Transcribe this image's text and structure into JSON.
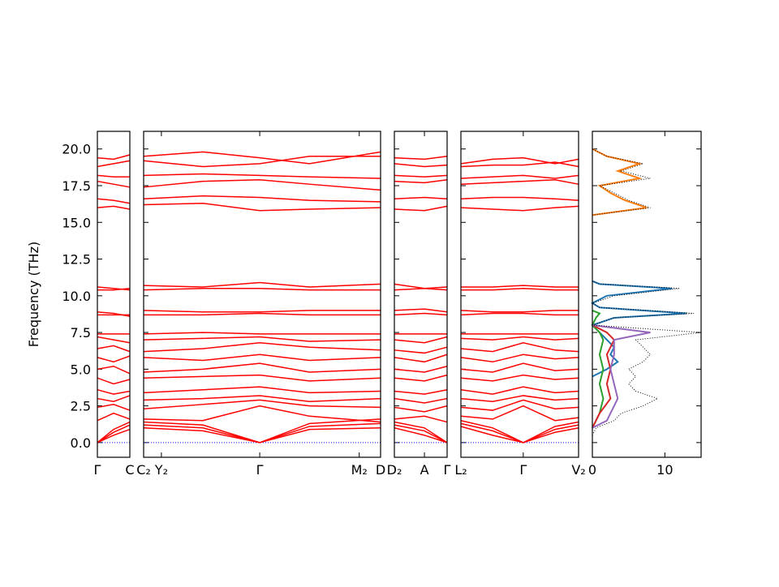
{
  "chart_data": {
    "type": "band_structure",
    "ylabel": "Frequency (THz)",
    "ylim": [
      -1,
      21.2
    ],
    "yticks": [
      {
        "value": 0,
        "label": "0.0"
      },
      {
        "value": 2.5,
        "label": "2.5"
      },
      {
        "value": 5,
        "label": "5.0"
      },
      {
        "value": 7.5,
        "label": "7.5"
      },
      {
        "value": 10,
        "label": "10.0"
      },
      {
        "value": 12.5,
        "label": "12.5"
      },
      {
        "value": 15,
        "label": "15.0"
      },
      {
        "value": 17.5,
        "label": "17.5"
      },
      {
        "value": 20,
        "label": "20.0"
      }
    ],
    "band_color": "#ff0000",
    "zero_line": {
      "value": 0,
      "color": "#0000ff"
    },
    "panels": [
      {
        "xlim": [
          0,
          1
        ],
        "xticks": [
          {
            "value": 0,
            "label": "Γ"
          },
          {
            "value": 1,
            "label": "C"
          }
        ],
        "x": [
          0,
          0.5,
          1
        ],
        "bands": [
          [
            19.4,
            19.3,
            19.6
          ],
          [
            18.8,
            19.0,
            19.2
          ],
          [
            18.2,
            18.1,
            18.1
          ],
          [
            17.8,
            17.6,
            17.4
          ],
          [
            16.6,
            16.5,
            16.3
          ],
          [
            16.0,
            16.1,
            15.9
          ],
          [
            10.6,
            10.5,
            10.4
          ],
          [
            10.4,
            10.4,
            10.5
          ],
          [
            8.9,
            8.8,
            8.6
          ],
          [
            8.7,
            8.7,
            8.7
          ],
          [
            7.4,
            7.4,
            7.4
          ],
          [
            7.2,
            7.0,
            6.8
          ],
          [
            6.4,
            6.6,
            6.2
          ],
          [
            5.8,
            5.5,
            5.9
          ],
          [
            5.0,
            5.2,
            4.7
          ],
          [
            4.4,
            4.0,
            4.3
          ],
          [
            3.6,
            3.3,
            3.5
          ],
          [
            3.0,
            2.8,
            3.2
          ],
          [
            2.4,
            2.6,
            2.2
          ],
          [
            1.5,
            2.0,
            1.6
          ],
          [
            0,
            0.9,
            1.4
          ],
          [
            0,
            0.7,
            1.2
          ],
          [
            0,
            0.5,
            0.9
          ]
        ]
      },
      {
        "xlim": [
          0,
          1
        ],
        "xticks": [
          {
            "value": 0,
            "label": "C₂"
          },
          {
            "value": 0.075,
            "label": "Y₂"
          },
          {
            "value": 0.49,
            "label": "Γ"
          },
          {
            "value": 0.91,
            "label": "M₂"
          },
          {
            "value": 1,
            "label": "D"
          }
        ],
        "x": [
          0,
          0.25,
          0.49,
          0.7,
          1
        ],
        "bands": [
          [
            19.5,
            19.8,
            19.4,
            19.0,
            19.8
          ],
          [
            19.2,
            18.8,
            19.0,
            19.5,
            19.5
          ],
          [
            18.2,
            18.3,
            18.2,
            18.1,
            18.0
          ],
          [
            17.4,
            17.8,
            17.9,
            17.6,
            17.2
          ],
          [
            16.6,
            16.8,
            16.7,
            16.5,
            16.4
          ],
          [
            16.2,
            16.3,
            15.8,
            15.9,
            16.0
          ],
          [
            10.7,
            10.6,
            10.9,
            10.6,
            10.8
          ],
          [
            10.4,
            10.5,
            10.5,
            10.4,
            10.4
          ],
          [
            9.0,
            8.9,
            8.9,
            9.0,
            9.0
          ],
          [
            8.7,
            8.7,
            8.8,
            8.7,
            8.7
          ],
          [
            7.4,
            7.5,
            7.4,
            7.4,
            7.4
          ],
          [
            7.0,
            7.1,
            7.2,
            6.9,
            7.0
          ],
          [
            6.2,
            6.4,
            6.8,
            6.5,
            6.3
          ],
          [
            5.8,
            5.6,
            6.0,
            5.6,
            5.8
          ],
          [
            4.8,
            5.0,
            5.4,
            4.8,
            5.0
          ],
          [
            4.4,
            4.5,
            4.6,
            4.2,
            4.4
          ],
          [
            3.4,
            3.6,
            3.8,
            3.4,
            3.5
          ],
          [
            2.9,
            3.0,
            3.2,
            2.8,
            3.0
          ],
          [
            2.3,
            2.6,
            2.9,
            2.5,
            2.4
          ],
          [
            1.6,
            1.5,
            2.5,
            1.8,
            1.4
          ],
          [
            1.4,
            1.2,
            0,
            1.3,
            1.6
          ],
          [
            1.2,
            1.0,
            0,
            1.1,
            1.3
          ],
          [
            1.0,
            0.8,
            0,
            0.9,
            1.0
          ]
        ]
      },
      {
        "xlim": [
          0,
          1
        ],
        "xticks": [
          {
            "value": 0,
            "label": "D₂"
          },
          {
            "value": 0.57,
            "label": "A"
          },
          {
            "value": 1,
            "label": "Γ"
          }
        ],
        "x": [
          0,
          0.57,
          1
        ],
        "bands": [
          [
            19.4,
            19.3,
            19.5
          ],
          [
            19.0,
            18.8,
            18.9
          ],
          [
            18.2,
            18.1,
            18.2
          ],
          [
            17.8,
            17.7,
            17.9
          ],
          [
            16.6,
            16.7,
            16.6
          ],
          [
            15.9,
            15.8,
            16.1
          ],
          [
            10.8,
            10.5,
            10.6
          ],
          [
            10.4,
            10.5,
            10.4
          ],
          [
            9.0,
            9.1,
            8.9
          ],
          [
            8.7,
            8.8,
            8.7
          ],
          [
            7.4,
            7.4,
            7.4
          ],
          [
            7.0,
            6.8,
            7.2
          ],
          [
            6.3,
            6.1,
            6.5
          ],
          [
            5.8,
            5.5,
            6.0
          ],
          [
            5.0,
            4.8,
            5.2
          ],
          [
            4.4,
            4.2,
            4.6
          ],
          [
            3.5,
            3.3,
            3.6
          ],
          [
            3.0,
            2.7,
            3.0
          ],
          [
            2.4,
            2.1,
            2.5
          ],
          [
            1.6,
            1.8,
            1.4
          ],
          [
            1.4,
            1.0,
            0
          ],
          [
            1.2,
            0.8,
            0
          ],
          [
            1.0,
            0.5,
            0
          ]
        ]
      },
      {
        "xlim": [
          0,
          1
        ],
        "xticks": [
          {
            "value": 0,
            "label": "L₂"
          },
          {
            "value": 0.53,
            "label": "Γ"
          },
          {
            "value": 1,
            "label": "V₂"
          }
        ],
        "x": [
          0,
          0.27,
          0.53,
          0.8,
          1
        ],
        "bands": [
          [
            19.0,
            19.3,
            19.4,
            19.0,
            19.3
          ],
          [
            18.8,
            18.9,
            18.9,
            19.1,
            18.8
          ],
          [
            18.0,
            18.1,
            18.2,
            18.0,
            18.2
          ],
          [
            17.6,
            17.7,
            17.8,
            17.9,
            17.6
          ],
          [
            16.6,
            16.7,
            16.7,
            16.6,
            16.5
          ],
          [
            16.0,
            15.9,
            15.8,
            16.0,
            16.1
          ],
          [
            10.6,
            10.6,
            10.7,
            10.6,
            10.6
          ],
          [
            10.4,
            10.4,
            10.5,
            10.4,
            10.4
          ],
          [
            9.0,
            8.9,
            8.9,
            9.0,
            9.0
          ],
          [
            8.7,
            8.8,
            8.8,
            8.7,
            8.7
          ],
          [
            7.4,
            7.4,
            7.4,
            7.4,
            7.4
          ],
          [
            7.1,
            7.0,
            7.2,
            7.0,
            7.1
          ],
          [
            6.4,
            6.2,
            6.8,
            6.3,
            6.2
          ],
          [
            5.8,
            5.5,
            6.0,
            5.7,
            5.8
          ],
          [
            5.0,
            4.8,
            5.4,
            4.9,
            5.0
          ],
          [
            4.4,
            4.2,
            4.6,
            4.3,
            4.4
          ],
          [
            3.6,
            3.3,
            3.8,
            3.4,
            3.5
          ],
          [
            3.0,
            2.8,
            3.2,
            2.9,
            3.0
          ],
          [
            2.4,
            2.2,
            2.9,
            2.3,
            2.4
          ],
          [
            1.8,
            1.6,
            2.5,
            1.5,
            1.7
          ],
          [
            1.5,
            1.0,
            0,
            1.1,
            1.4
          ],
          [
            1.3,
            0.8,
            0,
            0.9,
            1.2
          ],
          [
            1.1,
            0.5,
            0,
            0.7,
            1.0
          ]
        ]
      }
    ],
    "dos": {
      "xlim": [
        0,
        15
      ],
      "xticks": [
        0,
        10
      ],
      "series": [
        {
          "color": "#ff7f0e",
          "frequency": [
            15.5,
            16,
            16.5,
            17,
            17.5,
            18,
            18.5,
            19,
            19.5,
            20
          ],
          "values": [
            0,
            7.5,
            4.5,
            2.5,
            1,
            6.5,
            3.5,
            6.5,
            2,
            0
          ]
        },
        {
          "color": "#1f77b4",
          "frequency": [
            4.5,
            5,
            5.5,
            6,
            6.5,
            7,
            7.5,
            8,
            8.5,
            8.8,
            9.2,
            9.5,
            10,
            10.5,
            10.8,
            11
          ],
          "values": [
            0,
            2,
            3.5,
            2.5,
            3,
            2,
            1,
            0,
            3,
            13,
            1,
            0,
            2,
            11,
            1,
            0
          ]
        },
        {
          "color": "#2ca02c",
          "frequency": [
            1,
            2,
            3,
            4,
            5,
            6,
            7,
            7.5,
            8,
            8.5,
            8.8,
            9
          ],
          "values": [
            0,
            1,
            1.5,
            1,
            1.5,
            1,
            1.5,
            1,
            0,
            0.5,
            1,
            0
          ]
        },
        {
          "color": "#d62728",
          "frequency": [
            1,
            2,
            3,
            4,
            5,
            6,
            7,
            7.5,
            8
          ],
          "values": [
            0,
            1,
            2.5,
            2,
            2.5,
            2,
            3,
            2,
            0
          ]
        },
        {
          "color": "#9467bd",
          "frequency": [
            1,
            1.5,
            2,
            3,
            4,
            5,
            6,
            7,
            7.5,
            8
          ],
          "values": [
            0,
            2,
            2.5,
            3.5,
            3,
            2.5,
            3,
            3,
            8,
            0
          ]
        },
        {
          "color": "#000000",
          "dotted": true,
          "frequency": [
            0.5,
            1,
            1.5,
            2,
            2.5,
            3,
            3.5,
            4,
            4.5,
            5,
            5.5,
            6,
            6.5,
            7,
            7.5,
            8,
            8.5,
            8.8,
            9.2,
            9.5,
            10,
            10.5,
            10.8,
            11,
            15.5,
            16,
            16.5,
            17,
            17.5,
            18,
            18.5,
            19,
            19.5,
            20
          ],
          "values": [
            0,
            0.5,
            3,
            4,
            7,
            9,
            6,
            5,
            6,
            5,
            7,
            8,
            7,
            6,
            15,
            0,
            3,
            14,
            1,
            0,
            3,
            12,
            1,
            0,
            0,
            8,
            5,
            3,
            1,
            8,
            4,
            7,
            2,
            0
          ]
        }
      ]
    }
  }
}
